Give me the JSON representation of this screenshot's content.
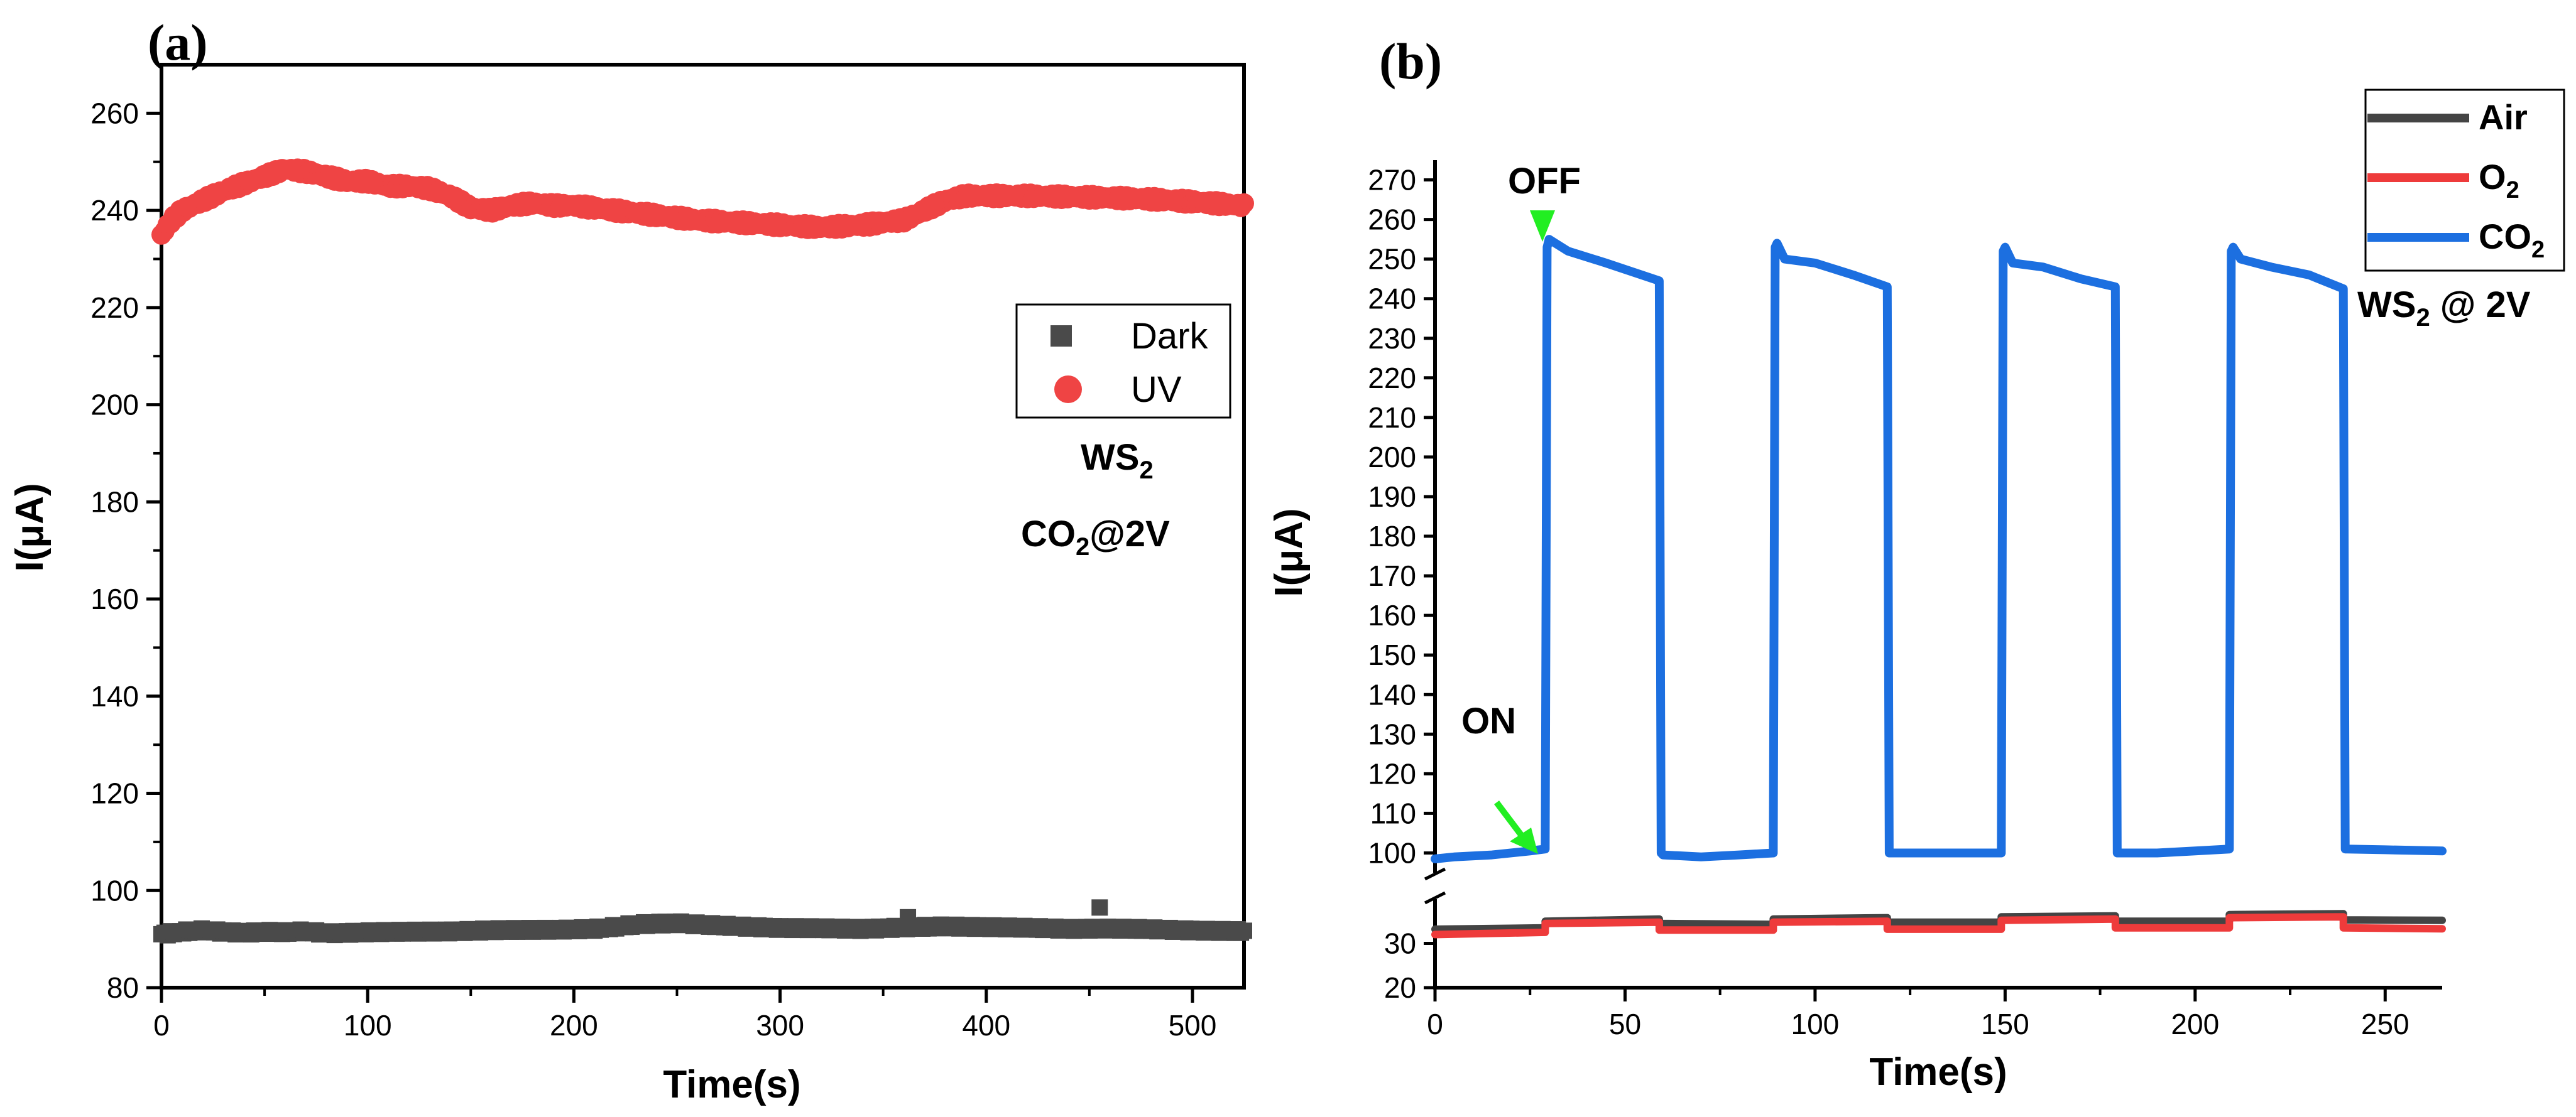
{
  "colors": {
    "dark": "#4a4a4a",
    "uv": "#ef4444",
    "air": "#444444",
    "o2": "#ee3b3b",
    "co2": "#1c6fe0",
    "marker": "#22ee22"
  },
  "chart_data": [
    {
      "panel": "(a)",
      "type": "scatter",
      "xlabel": "Time(s)",
      "ylabel": "I(μA)",
      "xlim": [
        0,
        525
      ],
      "ylim": [
        80,
        270
      ],
      "xticks": [
        0,
        100,
        200,
        300,
        400,
        500
      ],
      "yticks": [
        80,
        100,
        120,
        140,
        160,
        180,
        200,
        220,
        240,
        260
      ],
      "legend": {
        "position": "right-middle",
        "entries": [
          "Dark",
          "UV"
        ]
      },
      "annotation": {
        "line1": "WS",
        "line1_sub": "2",
        "line2a": "CO",
        "line2_sub": "2",
        "line2b": "@2V"
      },
      "series": [
        {
          "name": "Dark",
          "marker": "square",
          "x": [
            0,
            10,
            20,
            30,
            40,
            50,
            60,
            70,
            80,
            90,
            100,
            120,
            140,
            160,
            180,
            200,
            210,
            220,
            230,
            240,
            250,
            260,
            280,
            300,
            320,
            340,
            360,
            380,
            400,
            420,
            440,
            455,
            470,
            490,
            510,
            525
          ],
          "y": [
            91,
            91.5,
            91.8,
            91.5,
            91.3,
            91.5,
            91.4,
            91.6,
            91.2,
            91.3,
            91.4,
            91.5,
            91.6,
            91.8,
            91.9,
            92,
            92.1,
            92.5,
            93,
            93.2,
            93.3,
            93,
            92.6,
            92.3,
            92.2,
            92.1,
            92.4,
            92.6,
            92.5,
            92.3,
            92.1,
            92.2,
            92.1,
            91.9,
            91.7,
            91.6
          ]
        },
        {
          "name": "UV",
          "marker": "circle",
          "x": [
            0,
            5,
            10,
            20,
            30,
            40,
            50,
            60,
            70,
            80,
            90,
            100,
            110,
            120,
            130,
            140,
            150,
            160,
            170,
            180,
            190,
            200,
            220,
            240,
            260,
            280,
            300,
            320,
            340,
            360,
            370,
            380,
            390,
            400,
            420,
            440,
            460,
            480,
            500,
            515,
            525
          ],
          "y": [
            235,
            238,
            240,
            242,
            244,
            245.5,
            247,
            248.5,
            248,
            247,
            246,
            246,
            245,
            245,
            244.5,
            243,
            240.5,
            240,
            241,
            241.5,
            241,
            241,
            240,
            239,
            238,
            237.5,
            237,
            236.5,
            237,
            238,
            240,
            242,
            243,
            243,
            243,
            242.8,
            242.6,
            242.3,
            241.8,
            241.3,
            241
          ]
        }
      ]
    },
    {
      "panel": "(b)",
      "type": "line",
      "xlabel": "Time(s)",
      "ylabel": "I(μA)",
      "xlim": [
        0,
        265
      ],
      "ylim_upper": [
        95,
        275
      ],
      "ylim_lower": [
        20,
        40
      ],
      "axis_break": "between 40 and 95",
      "xticks": [
        0,
        50,
        100,
        150,
        200,
        250
      ],
      "yticks_upper": [
        100,
        110,
        120,
        130,
        140,
        150,
        160,
        170,
        180,
        190,
        200,
        210,
        220,
        230,
        240,
        250,
        260,
        270
      ],
      "yticks_lower": [
        20,
        30
      ],
      "legend": {
        "position": "top-right",
        "entries": [
          "Air",
          "O2"
        ]
      },
      "annotations": {
        "off": "OFF",
        "on": "ON",
        "ws": "WS",
        "ws_sub": "2",
        "ws_rest": " @ 2V"
      },
      "series": [
        {
          "name": "Air",
          "x": [
            0,
            29,
            29,
            59,
            59,
            89,
            89,
            119,
            119,
            149,
            149,
            179,
            179,
            209,
            209,
            239,
            239,
            265
          ],
          "y": [
            33.2,
            33.5,
            35,
            35.5,
            34.5,
            34.3,
            35.5,
            35.8,
            34.8,
            34.8,
            36,
            36.2,
            35,
            35,
            36.5,
            36.7,
            35.3,
            35.2
          ]
        },
        {
          "name": "O2",
          "x": [
            0,
            29,
            29,
            59,
            59,
            89,
            89,
            119,
            119,
            149,
            149,
            179,
            179,
            209,
            209,
            239,
            239,
            265
          ],
          "y": [
            32,
            32.5,
            34.5,
            34.8,
            33,
            33,
            34.8,
            35,
            33.2,
            33.2,
            35.2,
            35.5,
            33.5,
            33.5,
            35.8,
            36,
            33.5,
            33.3
          ]
        },
        {
          "name": "CO2",
          "x": [
            0,
            5,
            15,
            25,
            29,
            29.5,
            30,
            35,
            45,
            59,
            59.5,
            60,
            70,
            80,
            89,
            89.5,
            90,
            92,
            100,
            110,
            119,
            119.5,
            120,
            130,
            140,
            149,
            149.5,
            150,
            152,
            160,
            170,
            179,
            179.5,
            180,
            190,
            200,
            209,
            209.5,
            210,
            212,
            220,
            230,
            239,
            239.5,
            240,
            250,
            265
          ],
          "y": [
            98.5,
            99,
            99.5,
            100.5,
            101,
            253,
            255,
            252,
            249,
            244.5,
            100,
            99.5,
            99,
            99.5,
            100,
            253,
            254,
            250,
            249,
            246,
            243,
            100,
            100,
            100,
            100,
            100,
            252,
            253,
            249,
            248,
            245,
            243,
            100,
            100,
            100,
            100.5,
            101,
            252,
            253,
            250,
            248,
            246,
            242.5,
            101,
            101,
            100.8,
            100.5
          ]
        }
      ]
    }
  ]
}
